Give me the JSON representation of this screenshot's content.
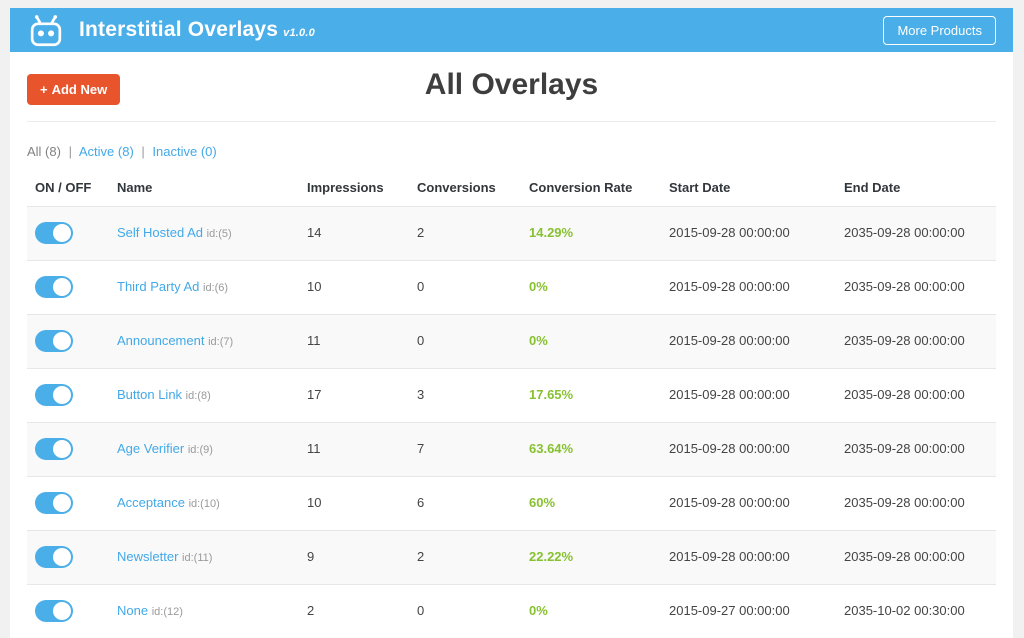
{
  "header": {
    "title": "Interstitial Overlays",
    "version": "v1.0.0",
    "more_products_label": "More Products"
  },
  "toolbar": {
    "add_new_plus": "+",
    "add_new_label": "Add New",
    "page_title": "All Overlays"
  },
  "filters": {
    "all": "All (8)",
    "active": "Active (8)",
    "inactive": "Inactive (0)",
    "separator": "|"
  },
  "table": {
    "columns": [
      "ON / OFF",
      "Name",
      "Impressions",
      "Conversions",
      "Conversion Rate",
      "Start Date",
      "End Date"
    ],
    "rows": [
      {
        "on": true,
        "name": "Self Hosted Ad",
        "id_label": "id:(5)",
        "impressions": "14",
        "conversions": "2",
        "conversion_rate": "14.29%",
        "start_date": "2015-09-28 00:00:00",
        "end_date": "2035-09-28 00:00:00"
      },
      {
        "on": true,
        "name": "Third Party Ad",
        "id_label": "id:(6)",
        "impressions": "10",
        "conversions": "0",
        "conversion_rate": "0%",
        "start_date": "2015-09-28 00:00:00",
        "end_date": "2035-09-28 00:00:00"
      },
      {
        "on": true,
        "name": "Announcement",
        "id_label": "id:(7)",
        "impressions": "11",
        "conversions": "0",
        "conversion_rate": "0%",
        "start_date": "2015-09-28 00:00:00",
        "end_date": "2035-09-28 00:00:00"
      },
      {
        "on": true,
        "name": "Button Link",
        "id_label": "id:(8)",
        "impressions": "17",
        "conversions": "3",
        "conversion_rate": "17.65%",
        "start_date": "2015-09-28 00:00:00",
        "end_date": "2035-09-28 00:00:00"
      },
      {
        "on": true,
        "name": "Age Verifier",
        "id_label": "id:(9)",
        "impressions": "11",
        "conversions": "7",
        "conversion_rate": "63.64%",
        "start_date": "2015-09-28 00:00:00",
        "end_date": "2035-09-28 00:00:00"
      },
      {
        "on": true,
        "name": "Acceptance",
        "id_label": "id:(10)",
        "impressions": "10",
        "conversions": "6",
        "conversion_rate": "60%",
        "start_date": "2015-09-28 00:00:00",
        "end_date": "2035-09-28 00:00:00"
      },
      {
        "on": true,
        "name": "Newsletter",
        "id_label": "id:(11)",
        "impressions": "9",
        "conversions": "2",
        "conversion_rate": "22.22%",
        "start_date": "2015-09-28 00:00:00",
        "end_date": "2035-09-28 00:00:00"
      },
      {
        "on": true,
        "name": "None",
        "id_label": "id:(12)",
        "impressions": "2",
        "conversions": "0",
        "conversion_rate": "0%",
        "start_date": "2015-09-27 00:00:00",
        "end_date": "2035-10-02 00:30:00"
      }
    ]
  },
  "colors": {
    "header_blue": "#4aaee8",
    "accent_orange": "#e8552c",
    "link_blue": "#42a9e8",
    "rate_green": "#87c12f"
  }
}
